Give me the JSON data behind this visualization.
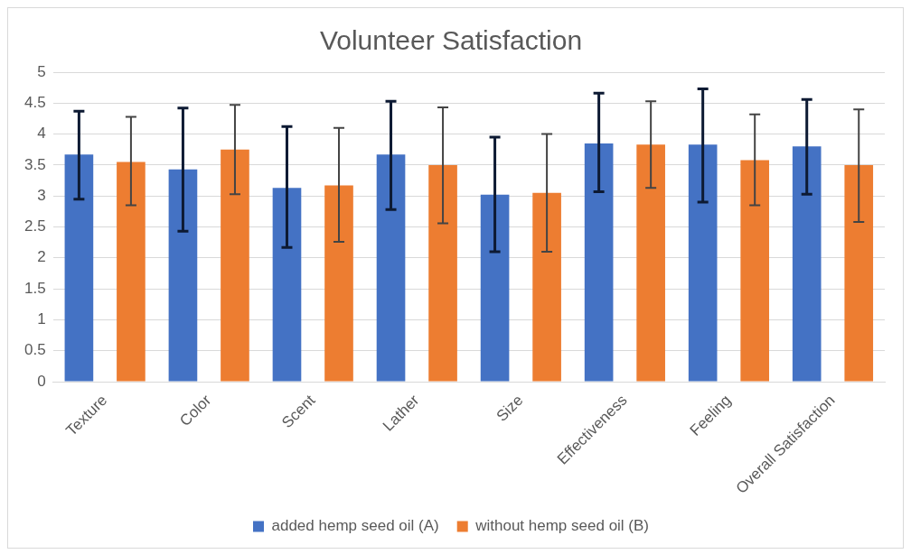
{
  "chart_data": {
    "type": "bar",
    "title": "Volunteer Satisfaction",
    "categories": [
      "Texture",
      "Color",
      "Scent",
      "Lather",
      "Size",
      "Effectiveness",
      "Feeling",
      "Overall Satisfaction"
    ],
    "series": [
      {
        "name": "added hemp seed oil (A)",
        "color": "#4472c4",
        "values": [
          3.67,
          3.43,
          3.13,
          3.67,
          3.02,
          3.85,
          3.83,
          3.8
        ],
        "errors": [
          [
            2.95,
            4.37
          ],
          [
            2.43,
            4.42
          ],
          [
            2.17,
            4.12
          ],
          [
            2.78,
            4.53
          ],
          [
            2.1,
            3.95
          ],
          [
            3.07,
            4.66
          ],
          [
            2.9,
            4.73
          ],
          [
            3.03,
            4.56
          ]
        ]
      },
      {
        "name": "without hemp seed oil (B)",
        "color": "#ed7d31",
        "values": [
          3.55,
          3.75,
          3.17,
          3.5,
          3.05,
          3.83,
          3.58,
          3.5
        ],
        "errors": [
          [
            2.85,
            4.28
          ],
          [
            3.03,
            4.47
          ],
          [
            2.26,
            4.1
          ],
          [
            2.56,
            4.43
          ],
          [
            2.1,
            4.0
          ],
          [
            3.13,
            4.53
          ],
          [
            2.85,
            4.32
          ],
          [
            2.58,
            4.4
          ]
        ]
      }
    ],
    "ylim": [
      0,
      5
    ],
    "yticks": [
      0,
      0.5,
      1,
      1.5,
      2,
      2.5,
      3,
      3.5,
      4,
      4.5,
      5
    ],
    "grid": "y",
    "legend": "bottom"
  }
}
